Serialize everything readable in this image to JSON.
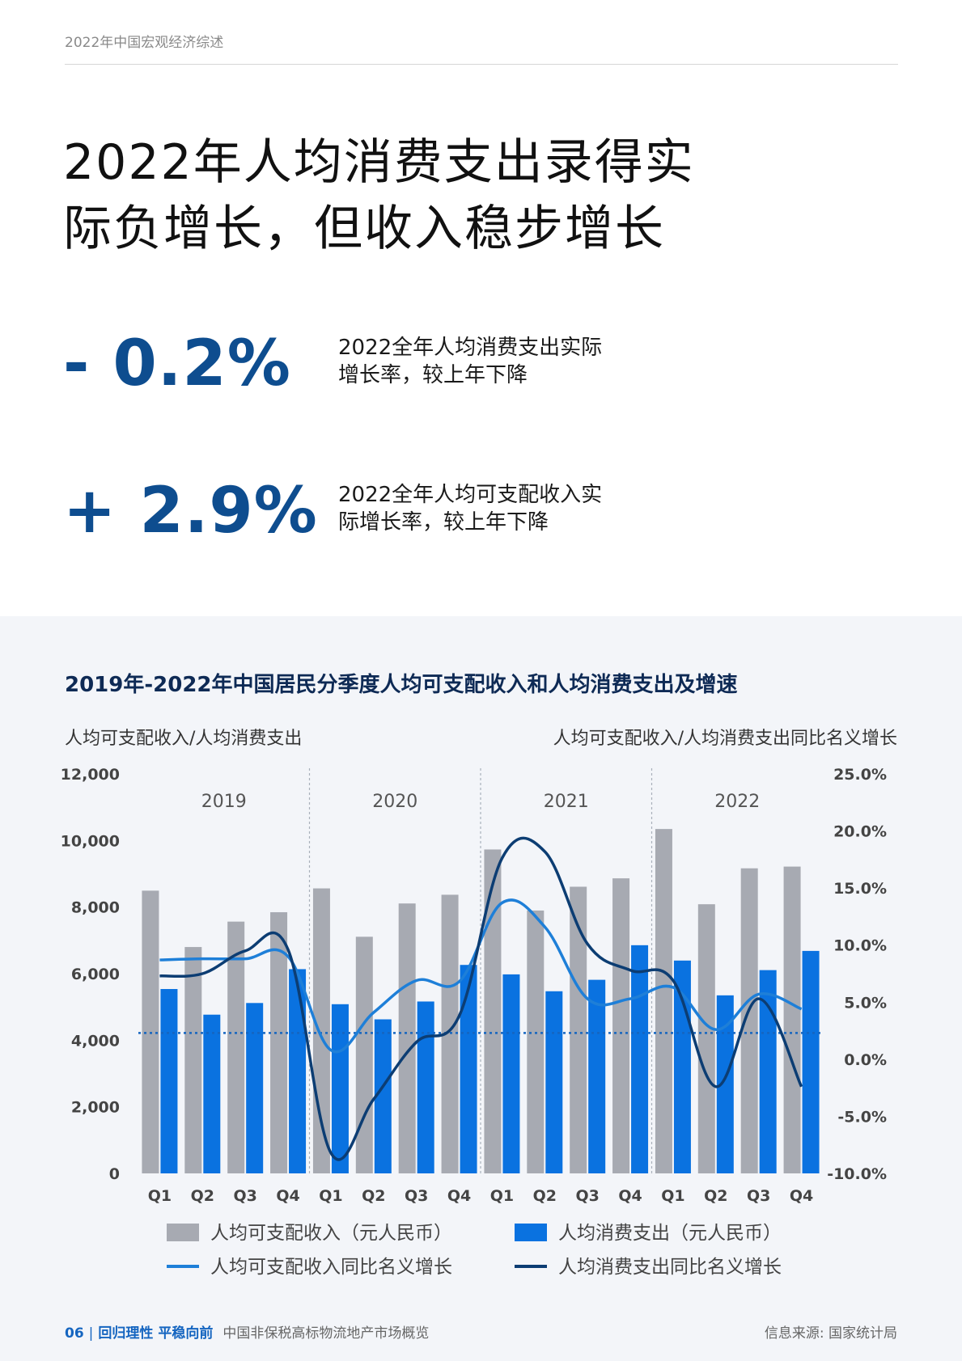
{
  "header": {
    "text": "2022年中国宏观经济综述"
  },
  "title": {
    "line1": "2022年人均消费支出录得实",
    "line2": "际负增长，但收入稳步增长"
  },
  "stats": [
    {
      "value": "- 0.2%",
      "desc_line1": "2022全年人均消费支出实际",
      "desc_line2": "增长率，较上年下降"
    },
    {
      "value": "+ 2.9%",
      "desc_line1": "2022全年人均可支配收入实",
      "desc_line2": "际增长率，较上年下降"
    }
  ],
  "chart_title": "2019年-2022年中国居民分季度人均可支配收入和人均消费支出及增速",
  "left_axis_label": "人均可支配收入/人均消费支出",
  "right_axis_label": "人均可支配收入/人均消费支出同比名义增长",
  "footer": {
    "page": "06",
    "sep": "|",
    "tag": "回归理性 平稳向前",
    "sub": "中国非保税高标物流地产市场概览",
    "source": "信息来源: 国家统计局"
  },
  "colors": {
    "accent": "#0e4d8f",
    "income_bar": "#a7aab2",
    "consumption_bar": "#0a72e0",
    "income_line": "#1e7fd8",
    "consumption_line": "#0c3d73"
  },
  "chart_data": {
    "type": "bar",
    "years": [
      "2019",
      "2020",
      "2021",
      "2022"
    ],
    "categories": [
      "Q1",
      "Q2",
      "Q3",
      "Q4",
      "Q1",
      "Q2",
      "Q3",
      "Q4",
      "Q1",
      "Q2",
      "Q3",
      "Q4",
      "Q1",
      "Q2",
      "Q3",
      "Q4"
    ],
    "left_ylim": [
      0,
      12000
    ],
    "left_ticks": [
      "12,000",
      "10,000",
      "8,000",
      "6,000",
      "4,000",
      "2,000",
      "0"
    ],
    "right_ylim": [
      -10,
      25
    ],
    "right_ticks": [
      "25.0%",
      "20.0%",
      "15.0%",
      "10.0%",
      "5.0%",
      "0.0%",
      "-5.0%",
      "-10.0%"
    ],
    "series": [
      {
        "name": "人均可支配收入（元人民币）",
        "kind": "bar",
        "values": [
          8493,
          6800,
          7563,
          7845,
          8561,
          7108,
          8108,
          8370,
          9730,
          7896,
          8611,
          8863,
          10345,
          8085,
          9164,
          9216
        ]
      },
      {
        "name": "人均消费支出（元人民币）",
        "kind": "bar",
        "values": [
          5538,
          4768,
          5118,
          6135,
          5082,
          4627,
          5163,
          6262,
          5978,
          5471,
          5815,
          6854,
          6393,
          5348,
          6106,
          6683
        ]
      },
      {
        "name": "人均可支配收入同比名义增长",
        "kind": "line",
        "axis": "right",
        "values": [
          8.7,
          8.8,
          8.8,
          9.0,
          0.8,
          4.1,
          6.9,
          6.8,
          13.7,
          11.6,
          5.3,
          5.3,
          6.3,
          2.6,
          5.7,
          4.4
        ]
      },
      {
        "name": "人均消费支出同比名义增长",
        "kind": "line",
        "axis": "right",
        "values": [
          7.3,
          7.5,
          9.5,
          9.6,
          -8.2,
          -3.5,
          1.5,
          3.8,
          17.6,
          18.2,
          10.1,
          7.8,
          6.9,
          -2.4,
          5.3,
          -2.4
        ]
      }
    ],
    "reference_line": 2.3,
    "legend_position": "bottom",
    "grid": false
  }
}
